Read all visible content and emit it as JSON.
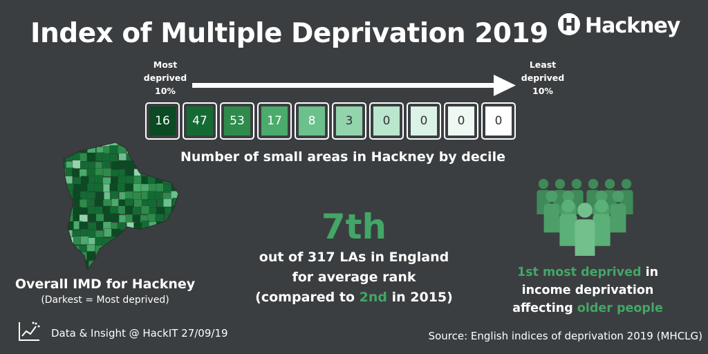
{
  "header": {
    "title": "Index of Multiple Deprivation 2019",
    "logo_text": "Hackney"
  },
  "scale": {
    "most_label_line1": "Most",
    "most_label_line2": "deprived",
    "most_label_line3": "10%",
    "least_label_line1": "Least",
    "least_label_line2": "deprived",
    "least_label_line3": "10%"
  },
  "deciles": {
    "values": [
      "16",
      "47",
      "53",
      "17",
      "8",
      "3",
      "0",
      "0",
      "0",
      "0"
    ],
    "colors": [
      "#0b4a22",
      "#136b33",
      "#2e8b4b",
      "#4aab6c",
      "#6cc08c",
      "#93d4ad",
      "#b9e6cc",
      "#daf3e6",
      "#eef9f3",
      "#ffffff"
    ],
    "text_colors": [
      "#ffffff",
      "#ffffff",
      "#ffffff",
      "#ffffff",
      "#ffffff",
      "#333333",
      "#333333",
      "#333333",
      "#333333",
      "#333333"
    ],
    "caption": "Number of small areas in Hackney by decile"
  },
  "map": {
    "title": "Overall IMD for Hackney",
    "subtitle": "(Darkest =  Most deprived)"
  },
  "rank": {
    "value": "7th",
    "line1": "out of 317 LAs in England",
    "line2": "for average rank",
    "line3_pre": "(compared to ",
    "line3_hl": "2nd",
    "line3_post": " in 2015)"
  },
  "income": {
    "line1_hl": "1st most deprived",
    "line1_post": " in",
    "line2": "income deprivation",
    "line3_pre": "affecting ",
    "line3_hl": "older people"
  },
  "footer": {
    "left": "Data & Insight @ HackIT 27/09/19",
    "right": "Source: English indices of deprivation 2019 (MHCLG)"
  },
  "colors": {
    "background": "#3b3e40",
    "accent": "#43a667"
  },
  "icons": [
    "hackney-logo-icon",
    "arrow-right-icon",
    "people-group-icon",
    "chart-logo-icon"
  ]
}
